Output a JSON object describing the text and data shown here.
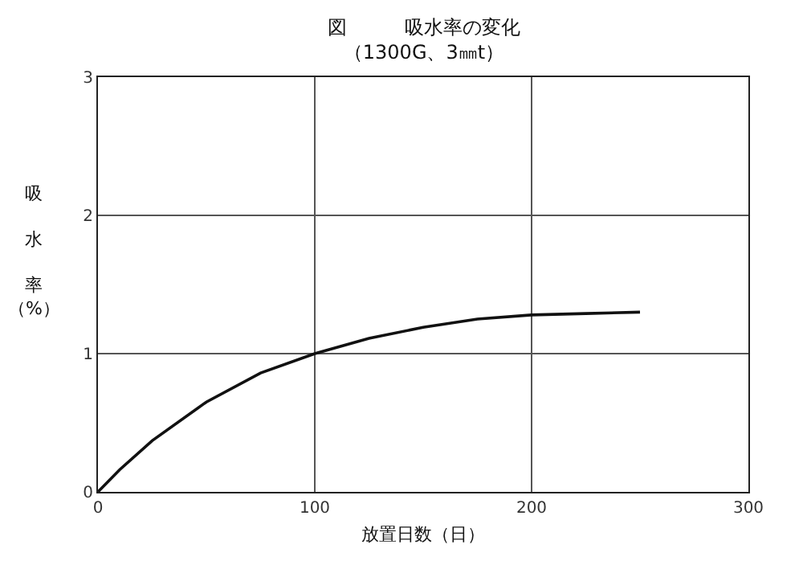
{
  "chart_data": {
    "type": "line",
    "title": "図　　　吸水率の変化",
    "subtitle": "（1300G、3㎜t）",
    "xlabel": "放置日数（日）",
    "ylabel": "吸水率（%）",
    "x": [
      0,
      10,
      25,
      50,
      75,
      100,
      125,
      150,
      175,
      200,
      225,
      250
    ],
    "series": [
      {
        "color": "#111111",
        "values": [
          0,
          0.16,
          0.37,
          0.65,
          0.86,
          1.0,
          1.11,
          1.19,
          1.25,
          1.28,
          1.29,
          1.3
        ]
      }
    ],
    "xlim": [
      0,
      300
    ],
    "xticks": [
      0,
      100,
      200,
      300
    ],
    "ylim": [
      0,
      3
    ],
    "yticks": [
      0,
      1,
      2,
      3
    ],
    "grid": true,
    "marker": "none",
    "line_style": "solid"
  }
}
